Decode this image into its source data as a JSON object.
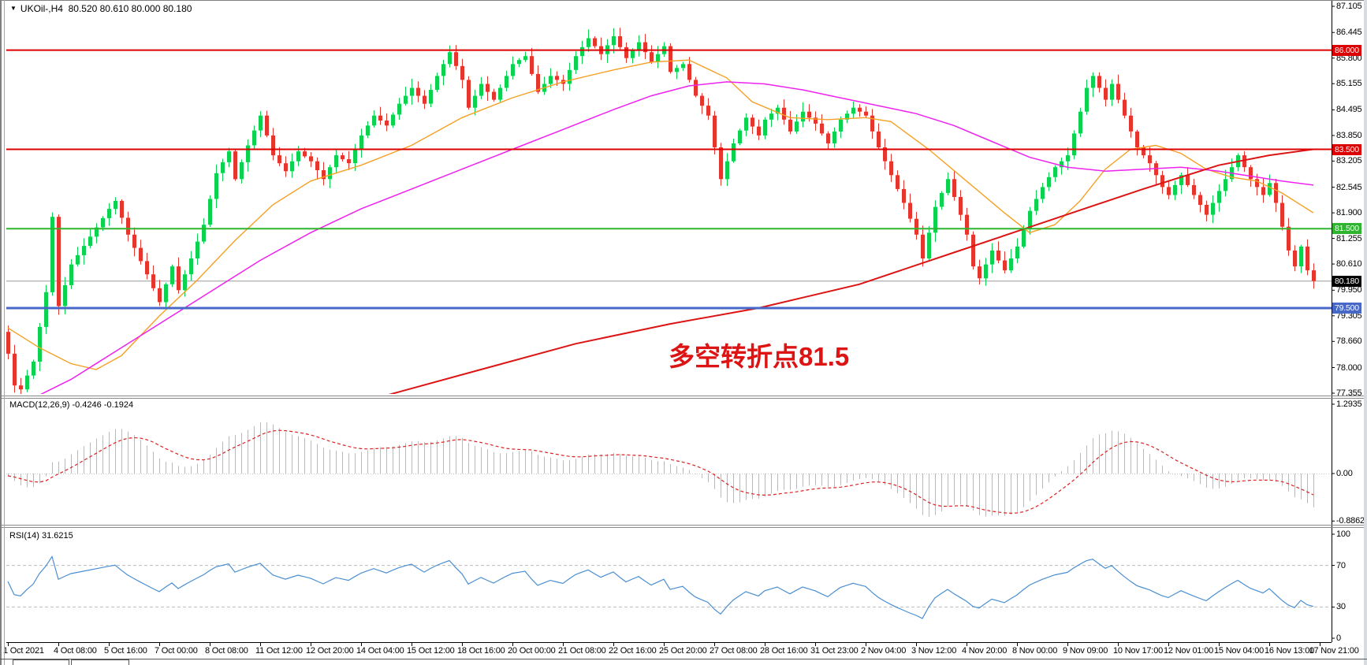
{
  "header": {
    "symbol_dropdown_icon": "▼",
    "symbol_info": "UKOil-,H4  80.520 80.610 80.000 80.180"
  },
  "annotation": {
    "text": "多空转折点81.5",
    "color": "#dd1414"
  },
  "panels": {
    "macd": {
      "label": "MACD(12,26,9) -0.4246 -0.1924",
      "axis": [
        {
          "v": 1.2935,
          "t": "1.2935"
        },
        {
          "v": 0,
          "t": "0.00"
        },
        {
          "v": -0.8862,
          "t": "-0.8862"
        }
      ]
    },
    "rsi": {
      "label": "RSI(14) 31.6215",
      "axis": [
        {
          "v": 100,
          "t": "100"
        },
        {
          "v": 70,
          "t": "70"
        },
        {
          "v": 30,
          "t": "30"
        },
        {
          "v": 0,
          "t": "0"
        }
      ]
    }
  },
  "chart_data": {
    "type": "candlestick",
    "symbol": "UKOil-",
    "timeframe": "H4",
    "ohlc_quote": {
      "open": "80.520",
      "high": "80.610",
      "low": "80.000",
      "close": "80.180"
    },
    "y_range": [
      77.355,
      87.105
    ],
    "bar_count": 208,
    "bars_per_label": 8,
    "wick_amplitude": 0.2,
    "colors": {
      "up": "#0bd24f",
      "down": "#e6352c"
    },
    "price_axis_labels": [
      "87.105",
      "86.445",
      "85.800",
      "85.155",
      "84.495",
      "83.850",
      "83.205",
      "82.545",
      "81.900",
      "81.255",
      "80.610",
      "79.950",
      "79.305",
      "78.660",
      "78.000",
      "77.355"
    ],
    "x_labels": [
      "1 Oct 2021",
      "4 Oct 08:00",
      "5 Oct 16:00",
      "7 Oct 00:00",
      "8 Oct 08:00",
      "11 Oct 12:00",
      "12 Oct 20:00",
      "14 Oct 04:00",
      "15 Oct 12:00",
      "18 Oct 16:00",
      "20 Oct 00:00",
      "21 Oct 08:00",
      "22 Oct 16:00",
      "25 Oct 20:00",
      "27 Oct 08:00",
      "28 Oct 16:00",
      "31 Oct 23:00",
      "2 Nov 04:00",
      "3 Nov 12:00",
      "4 Nov 20:00",
      "8 Nov 00:00",
      "9 Nov 09:00",
      "10 Nov 17:00",
      "12 Nov 01:00",
      "15 Nov 04:00",
      "16 Nov 13:00",
      "17 Nov 21:00"
    ],
    "hlines": [
      {
        "price": 86.0,
        "label": "86.000",
        "color": "#dd0000",
        "width": 2
      },
      {
        "price": 83.5,
        "label": "83.500",
        "color": "#dd0000",
        "width": 2
      },
      {
        "price": 81.5,
        "label": "81.500",
        "color": "#2eb42e",
        "width": 2
      },
      {
        "price": 79.5,
        "label": "79.500",
        "color": "#4868c8",
        "width": 3
      }
    ],
    "price_line": {
      "price": 80.18,
      "label": "80.180",
      "line_color": "#9a9a9a",
      "badge_color": "#000000"
    },
    "close_waypoints": [
      [
        0,
        78.35
      ],
      [
        1,
        77.55
      ],
      [
        2,
        77.45
      ],
      [
        4,
        78.15
      ],
      [
        6,
        79.9
      ],
      [
        7,
        81.8
      ],
      [
        8,
        79.55
      ],
      [
        10,
        80.6
      ],
      [
        13,
        81.3
      ],
      [
        16,
        82.0
      ],
      [
        17,
        82.2
      ],
      [
        19,
        81.35
      ],
      [
        22,
        80.35
      ],
      [
        24,
        79.65
      ],
      [
        26,
        80.55
      ],
      [
        27,
        79.95
      ],
      [
        29,
        80.75
      ],
      [
        31,
        81.6
      ],
      [
        33,
        82.9
      ],
      [
        35,
        83.45
      ],
      [
        36,
        82.75
      ],
      [
        38,
        83.6
      ],
      [
        40,
        84.35
      ],
      [
        42,
        83.35
      ],
      [
        44,
        82.95
      ],
      [
        46,
        83.45
      ],
      [
        48,
        83.2
      ],
      [
        50,
        82.75
      ],
      [
        52,
        83.35
      ],
      [
        54,
        83.15
      ],
      [
        56,
        83.85
      ],
      [
        58,
        84.35
      ],
      [
        60,
        84.1
      ],
      [
        62,
        84.65
      ],
      [
        64,
        85.05
      ],
      [
        66,
        84.65
      ],
      [
        68,
        85.35
      ],
      [
        70,
        85.95
      ],
      [
        72,
        85.25
      ],
      [
        73,
        84.55
      ],
      [
        75,
        85.15
      ],
      [
        77,
        84.75
      ],
      [
        80,
        85.65
      ],
      [
        82,
        85.85
      ],
      [
        84,
        84.95
      ],
      [
        86,
        85.35
      ],
      [
        88,
        85.15
      ],
      [
        90,
        85.85
      ],
      [
        92,
        86.3
      ],
      [
        94,
        85.9
      ],
      [
        96,
        86.35
      ],
      [
        98,
        85.8
      ],
      [
        100,
        86.2
      ],
      [
        102,
        85.7
      ],
      [
        104,
        86.1
      ],
      [
        105,
        85.45
      ],
      [
        107,
        85.65
      ],
      [
        109,
        84.85
      ],
      [
        111,
        84.35
      ],
      [
        112,
        83.55
      ],
      [
        113,
        82.75
      ],
      [
        115,
        83.65
      ],
      [
        117,
        84.3
      ],
      [
        119,
        83.85
      ],
      [
        120,
        84.25
      ],
      [
        122,
        84.55
      ],
      [
        124,
        83.95
      ],
      [
        126,
        84.45
      ],
      [
        128,
        84.15
      ],
      [
        130,
        83.65
      ],
      [
        132,
        84.25
      ],
      [
        134,
        84.55
      ],
      [
        136,
        84.35
      ],
      [
        138,
        83.55
      ],
      [
        140,
        82.85
      ],
      [
        142,
        82.15
      ],
      [
        144,
        81.35
      ],
      [
        145,
        80.75
      ],
      [
        147,
        82.05
      ],
      [
        149,
        82.75
      ],
      [
        151,
        81.85
      ],
      [
        152,
        81.35
      ],
      [
        153,
        80.55
      ],
      [
        154,
        80.25
      ],
      [
        156,
        80.95
      ],
      [
        158,
        80.45
      ],
      [
        160,
        81.05
      ],
      [
        162,
        81.95
      ],
      [
        164,
        82.55
      ],
      [
        166,
        83.05
      ],
      [
        168,
        83.35
      ],
      [
        170,
        84.45
      ],
      [
        171,
        85.05
      ],
      [
        172,
        85.35
      ],
      [
        174,
        84.75
      ],
      [
        175,
        85.15
      ],
      [
        177,
        84.35
      ],
      [
        179,
        83.55
      ],
      [
        181,
        83.15
      ],
      [
        183,
        82.55
      ],
      [
        184,
        82.35
      ],
      [
        186,
        82.85
      ],
      [
        188,
        82.35
      ],
      [
        190,
        81.85
      ],
      [
        192,
        82.45
      ],
      [
        194,
        83.05
      ],
      [
        195,
        83.35
      ],
      [
        197,
        82.75
      ],
      [
        199,
        82.35
      ],
      [
        200,
        82.65
      ],
      [
        201,
        82.15
      ],
      [
        202,
        81.55
      ],
      [
        203,
        80.95
      ],
      [
        204,
        80.55
      ],
      [
        205,
        81.05
      ],
      [
        206,
        80.45
      ],
      [
        207,
        80.18
      ]
    ],
    "moving_averages": [
      {
        "name": "ma-fast-orange",
        "color": "#f5a023",
        "width": 1.4,
        "points": [
          [
            0,
            79.0
          ],
          [
            5,
            78.5
          ],
          [
            10,
            78.1
          ],
          [
            14,
            77.95
          ],
          [
            18,
            78.3
          ],
          [
            24,
            79.3
          ],
          [
            30,
            80.2
          ],
          [
            36,
            81.2
          ],
          [
            42,
            82.1
          ],
          [
            48,
            82.7
          ],
          [
            56,
            83.1
          ],
          [
            64,
            83.6
          ],
          [
            72,
            84.3
          ],
          [
            80,
            84.8
          ],
          [
            88,
            85.2
          ],
          [
            96,
            85.5
          ],
          [
            102,
            85.7
          ],
          [
            108,
            85.75
          ],
          [
            114,
            85.3
          ],
          [
            118,
            84.7
          ],
          [
            124,
            84.3
          ],
          [
            130,
            84.25
          ],
          [
            136,
            84.3
          ],
          [
            140,
            84.2
          ],
          [
            146,
            83.5
          ],
          [
            152,
            82.7
          ],
          [
            158,
            81.9
          ],
          [
            162,
            81.4
          ],
          [
            166,
            81.6
          ],
          [
            170,
            82.2
          ],
          [
            174,
            83.0
          ],
          [
            178,
            83.5
          ],
          [
            182,
            83.6
          ],
          [
            186,
            83.4
          ],
          [
            190,
            83.0
          ],
          [
            194,
            82.8
          ],
          [
            198,
            82.7
          ],
          [
            202,
            82.4
          ],
          [
            207,
            81.9
          ]
        ]
      },
      {
        "name": "ma-mid-magenta",
        "color": "#ee22ee",
        "width": 1.5,
        "points": [
          [
            3,
            77.15
          ],
          [
            10,
            77.7
          ],
          [
            16,
            78.3
          ],
          [
            24,
            79.1
          ],
          [
            32,
            79.9
          ],
          [
            40,
            80.7
          ],
          [
            48,
            81.4
          ],
          [
            56,
            82.0
          ],
          [
            64,
            82.5
          ],
          [
            72,
            83.0
          ],
          [
            80,
            83.5
          ],
          [
            88,
            84.0
          ],
          [
            96,
            84.5
          ],
          [
            102,
            84.85
          ],
          [
            108,
            85.1
          ],
          [
            114,
            85.2
          ],
          [
            120,
            85.15
          ],
          [
            126,
            85.0
          ],
          [
            132,
            84.8
          ],
          [
            138,
            84.6
          ],
          [
            144,
            84.4
          ],
          [
            150,
            84.1
          ],
          [
            156,
            83.7
          ],
          [
            162,
            83.3
          ],
          [
            168,
            83.05
          ],
          [
            174,
            82.95
          ],
          [
            180,
            83.0
          ],
          [
            186,
            83.05
          ],
          [
            192,
            82.95
          ],
          [
            198,
            82.8
          ],
          [
            202,
            82.7
          ],
          [
            207,
            82.6
          ]
        ]
      },
      {
        "name": "ma-slow-red",
        "color": "#dd1414",
        "width": 2,
        "points": [
          [
            60,
            77.3
          ],
          [
            75,
            77.95
          ],
          [
            90,
            78.6
          ],
          [
            105,
            79.1
          ],
          [
            119,
            79.5
          ],
          [
            135,
            80.1
          ],
          [
            150,
            80.9
          ],
          [
            165,
            81.7
          ],
          [
            180,
            82.5
          ],
          [
            192,
            83.1
          ],
          [
            200,
            83.35
          ],
          [
            207,
            83.5
          ]
        ]
      }
    ],
    "macd": {
      "fast": 12,
      "slow": 26,
      "signal": 9,
      "hist_color": "#b9b9b9",
      "signal_color": "#dd2222",
      "main_value": "-0.4246",
      "signal_value": "-0.1924"
    },
    "rsi": {
      "period": 14,
      "color": "#4a8fd2",
      "levels": [
        70,
        30
      ],
      "value": "31.6215"
    }
  }
}
